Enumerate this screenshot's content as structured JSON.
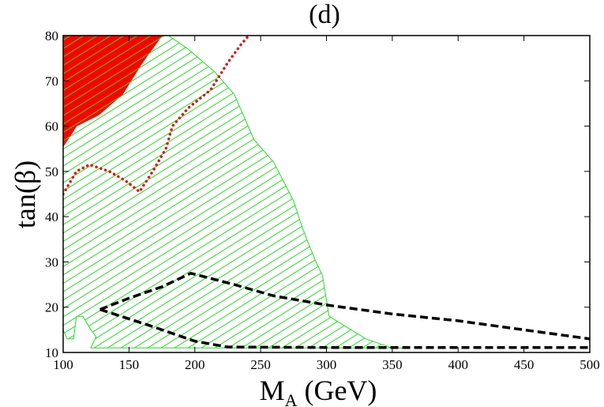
{
  "chart_data": {
    "type": "area",
    "title": "(d)",
    "xlabel": {
      "main": "M",
      "sub": "A",
      "rest": " (GeV)"
    },
    "ylabel": "tan(β)",
    "xlim": [
      100,
      500
    ],
    "ylim": [
      10,
      80
    ],
    "x_ticks": [
      100,
      150,
      200,
      250,
      300,
      350,
      400,
      450,
      500
    ],
    "y_ticks": [
      10,
      20,
      30,
      40,
      50,
      60,
      70,
      80
    ],
    "grid": false,
    "colors": {
      "red_region": "#ff0000",
      "hatched_region": "#22dd22",
      "red_dotted": "#dd1111",
      "black_dashed": "#000000"
    },
    "regions": [
      {
        "style": "red-filled",
        "points": [
          [
            100,
            80
          ],
          [
            175,
            80
          ],
          [
            160,
            74
          ],
          [
            145,
            67
          ],
          [
            127,
            62.5
          ],
          [
            110,
            60
          ],
          [
            100,
            55.5
          ]
        ]
      },
      {
        "style": "green-hatched",
        "points": [
          [
            100,
            80
          ],
          [
            175,
            80
          ],
          [
            180,
            80
          ],
          [
            195,
            77
          ],
          [
            215,
            72
          ],
          [
            230,
            67
          ],
          [
            245,
            57
          ],
          [
            260,
            52
          ],
          [
            275,
            43.5
          ],
          [
            280,
            39
          ],
          [
            285,
            35
          ],
          [
            292,
            30
          ],
          [
            297,
            27
          ],
          [
            302,
            18
          ],
          [
            330,
            13
          ],
          [
            350,
            11
          ],
          [
            360,
            11
          ],
          [
            360,
            11
          ],
          [
            121,
            11
          ],
          [
            125,
            13.5
          ],
          [
            120,
            15.5
          ],
          [
            115,
            18
          ],
          [
            110,
            18
          ],
          [
            108,
            13
          ],
          [
            103,
            13
          ],
          [
            100,
            15
          ]
        ]
      }
    ],
    "series": [
      {
        "style": "red-dotted",
        "points": [
          [
            100,
            45
          ],
          [
            110,
            50
          ],
          [
            120,
            51.5
          ],
          [
            135,
            50
          ],
          [
            147,
            48
          ],
          [
            158,
            45.5
          ],
          [
            168,
            50
          ],
          [
            178,
            55
          ],
          [
            183,
            60
          ],
          [
            195,
            64
          ],
          [
            212,
            68
          ],
          [
            225,
            74
          ],
          [
            235,
            78
          ],
          [
            241,
            80
          ]
        ]
      },
      {
        "style": "black-dashed",
        "points": [
          [
            128,
            19.5
          ],
          [
            150,
            22
          ],
          [
            175,
            24.5
          ],
          [
            197,
            27.5
          ],
          [
            230,
            25
          ],
          [
            260,
            22.5
          ],
          [
            300,
            20.5
          ],
          [
            350,
            18.5
          ],
          [
            400,
            17
          ],
          [
            450,
            15
          ],
          [
            500,
            13
          ]
        ]
      },
      {
        "style": "black-dashed",
        "points": [
          [
            128,
            19.5
          ],
          [
            165,
            16
          ],
          [
            200,
            12.5
          ],
          [
            225,
            11.2
          ],
          [
            300,
            11.1
          ],
          [
            400,
            11.1
          ],
          [
            500,
            11.1
          ]
        ]
      }
    ]
  }
}
